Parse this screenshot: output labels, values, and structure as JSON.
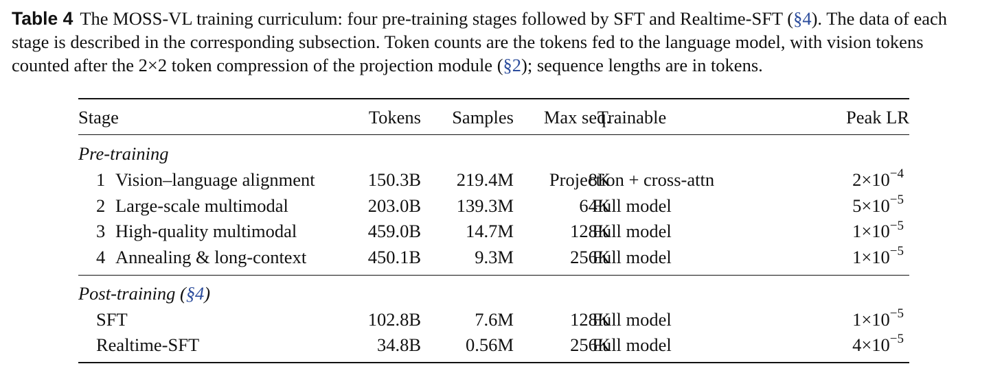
{
  "caption": {
    "label": "Table 4",
    "text_1": "The MOSS-VL training curriculum: four pre-training stages followed by SFT and Realtime-SFT (",
    "ref_1": "§4",
    "text_2": "). The data of each stage is described in the corresponding subsection. Token counts are the tokens fed to the language model, with vision tokens counted after the 2×2 token compression of the projection module (",
    "ref_2": "§2",
    "text_3": "); sequence lengths are in tokens."
  },
  "table": {
    "headers": {
      "stage": "Stage",
      "tokens": "Tokens",
      "samples": "Samples",
      "max_seq": "Max seq.",
      "trainable": "Trainable",
      "peak_lr": "Peak LR"
    },
    "pretraining": {
      "title": "Pre-training",
      "rows": [
        {
          "num": "1",
          "stage": "Vision–language alignment",
          "tokens": "150.3B",
          "samples": "219.4M",
          "max_seq": "8K",
          "trainable": "Projection + cross-attn",
          "lr_mant": "2×10",
          "lr_exp": "−4"
        },
        {
          "num": "2",
          "stage": "Large-scale multimodal",
          "tokens": "203.0B",
          "samples": "139.3M",
          "max_seq": "64K",
          "trainable": "Full model",
          "lr_mant": "5×10",
          "lr_exp": "−5"
        },
        {
          "num": "3",
          "stage": "High-quality multimodal",
          "tokens": "459.0B",
          "samples": "14.7M",
          "max_seq": "128K",
          "trainable": "Full model",
          "lr_mant": "1×10",
          "lr_exp": "−5"
        },
        {
          "num": "4",
          "stage": "Annealing & long-context",
          "tokens": "450.1B",
          "samples": "9.3M",
          "max_seq": "256K",
          "trainable": "Full model",
          "lr_mant": "1×10",
          "lr_exp": "−5"
        }
      ]
    },
    "posttraining": {
      "title": "Post-training (",
      "ref": "§4",
      "title_end": ")",
      "rows": [
        {
          "stage": "SFT",
          "tokens": "102.8B",
          "samples": "7.6M",
          "max_seq": "128K",
          "trainable": "Full model",
          "lr_mant": "1×10",
          "lr_exp": "−5"
        },
        {
          "stage": "Realtime-SFT",
          "tokens": "34.8B",
          "samples": "0.56M",
          "max_seq": "256K",
          "trainable": "Full model",
          "lr_mant": "4×10",
          "lr_exp": "−5"
        }
      ]
    }
  }
}
